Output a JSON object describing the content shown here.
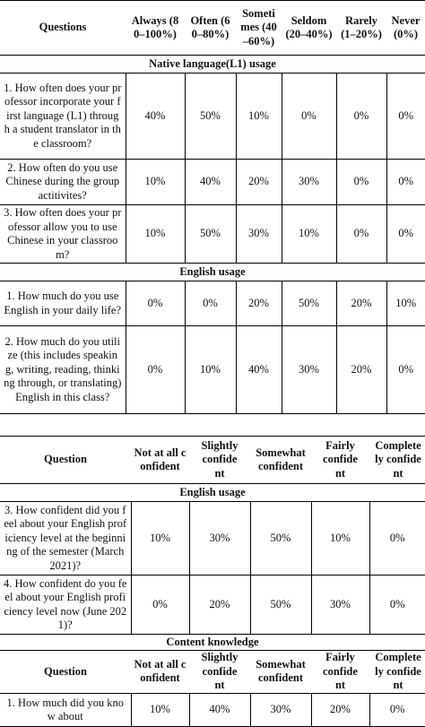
{
  "table1": {
    "headers": [
      "Questions",
      "Always (80–100%)",
      "Often (60–80%)",
      "Sometimes (40–60%)",
      "Seldom (20–40%)",
      "Rarely (1–20%)",
      "Never (0%)"
    ],
    "sections": [
      {
        "title": "Native language(L1) usage",
        "rows": [
          {
            "q": "1. How often does your professor incorporate your first language (L1) through a student translator in the classroom?",
            "v": [
              "40%",
              "50%",
              "10%",
              "0%",
              "0%",
              "0%"
            ]
          },
          {
            "q": "2. How often do you use Chinese during the group actitivites?",
            "v": [
              "10%",
              "40%",
              "20%",
              "30%",
              "0%",
              "0%"
            ]
          },
          {
            "q": "3. How often does your professor allow you to use Chinese in your classroom?",
            "v": [
              "10%",
              "50%",
              "30%",
              "10%",
              "0%",
              "0%"
            ]
          }
        ]
      },
      {
        "title": "English usage",
        "rows": [
          {
            "q": "1. How much do you use English in your daily life?",
            "v": [
              "0%",
              "0%",
              "20%",
              "50%",
              "20%",
              "10%"
            ]
          },
          {
            "q": "2. How much do you utilize (this includes speaking, writing, reading, thinking through, or translating) English in this class?",
            "v": [
              "0%",
              "10%",
              "40%",
              "30%",
              "20%",
              "0%"
            ]
          }
        ]
      }
    ]
  },
  "table2": {
    "headers": [
      "Question",
      "Not at all confident",
      "Slightly confident",
      "Somewhat confident",
      "Fairly confident",
      "Completely confident"
    ],
    "sections": [
      {
        "title": "English usage",
        "rows": [
          {
            "q": "3. How confident did you feel about your English proficiency level at the beginning of the semester (March 2021)?",
            "v": [
              "10%",
              "30%",
              "50%",
              "10%",
              "0%"
            ]
          },
          {
            "q": "4. How confident do you feel about your English proficiency level now (June 2021)?",
            "v": [
              "0%",
              "20%",
              "50%",
              "30%",
              "0%"
            ]
          }
        ]
      },
      {
        "title": "Content knowledge",
        "rows": []
      }
    ],
    "headers_repeat": [
      "Question",
      "Not at all confident",
      "Slightly confident",
      "Somewhat confident",
      "Fairly confident",
      "Completely confident"
    ],
    "content_rows": [
      {
        "q": "1. How much did you know about",
        "v": [
          "10%",
          "40%",
          "30%",
          "20%",
          "0%"
        ]
      }
    ]
  }
}
